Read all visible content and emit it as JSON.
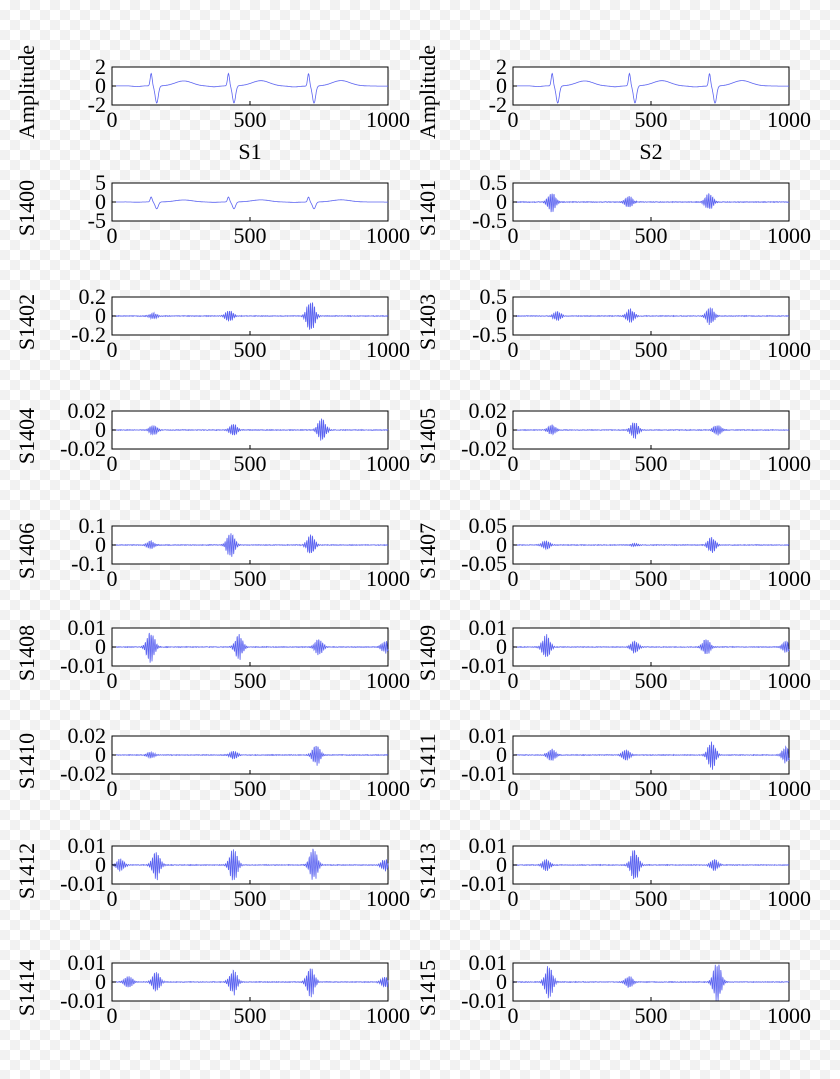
{
  "chart_data": [
    {
      "type": "line",
      "ylabel": "Amplitude",
      "subtitle": "S1",
      "xlim": [
        0,
        1000
      ],
      "ylim": [
        -2,
        2
      ],
      "xticks": [
        "0",
        "500",
        "1000"
      ],
      "yticks": [
        "2",
        "0",
        "-2"
      ],
      "color": "#5b63f0",
      "signal": {
        "kind": "ecg",
        "amp": 1
      }
    },
    {
      "type": "line",
      "ylabel": "Amplitude",
      "subtitle": "S2",
      "xlim": [
        0,
        1000
      ],
      "ylim": [
        -2,
        2
      ],
      "xticks": [
        "0",
        "500",
        "1000"
      ],
      "yticks": [
        "2",
        "0",
        "-2"
      ],
      "color": "#5b63f0",
      "signal": {
        "kind": "ecg",
        "amp": 1
      }
    },
    {
      "type": "line",
      "ylabel": "S1400",
      "xlim": [
        0,
        1000
      ],
      "ylim": [
        -5,
        5
      ],
      "xticks": [
        "0",
        "500",
        "1000"
      ],
      "yticks": [
        "5",
        "0",
        "-5"
      ],
      "color": "#5b63f0",
      "signal": {
        "kind": "ecg",
        "amp": 0.9
      }
    },
    {
      "type": "line",
      "ylabel": "S1401",
      "xlim": [
        0,
        1000
      ],
      "ylim": [
        -0.5,
        0.5
      ],
      "xticks": [
        "0",
        "500",
        "1000"
      ],
      "yticks": [
        "0.5",
        "0",
        "-0.5"
      ],
      "color": "#5b63f0",
      "signal": {
        "kind": "burst",
        "bursts": [
          [
            140,
            0.25
          ],
          [
            420,
            0.15
          ],
          [
            710,
            0.2
          ]
        ]
      }
    },
    {
      "type": "line",
      "ylabel": "S1402",
      "xlim": [
        0,
        1000
      ],
      "ylim": [
        -0.2,
        0.2
      ],
      "xticks": [
        "0",
        "500",
        "1000"
      ],
      "yticks": [
        "0.2",
        "0",
        "-0.2"
      ],
      "color": "#5b63f0",
      "signal": {
        "kind": "burst",
        "bursts": [
          [
            150,
            0.03
          ],
          [
            425,
            0.06
          ],
          [
            720,
            0.17
          ]
        ]
      }
    },
    {
      "type": "line",
      "ylabel": "S1403",
      "xlim": [
        0,
        1000
      ],
      "ylim": [
        -0.5,
        0.5
      ],
      "xticks": [
        "0",
        "500",
        "1000"
      ],
      "yticks": [
        "0.5",
        "0",
        "-0.5"
      ],
      "color": "#5b63f0",
      "signal": {
        "kind": "burst",
        "bursts": [
          [
            160,
            0.12
          ],
          [
            425,
            0.18
          ],
          [
            715,
            0.22
          ]
        ]
      }
    },
    {
      "type": "line",
      "ylabel": "S1404",
      "xlim": [
        0,
        1000
      ],
      "ylim": [
        -0.02,
        0.02
      ],
      "xticks": [
        "0",
        "500",
        "1000"
      ],
      "yticks": [
        "0.02",
        "0",
        "-0.02"
      ],
      "color": "#5b63f0",
      "signal": {
        "kind": "burst",
        "bursts": [
          [
            150,
            0.005
          ],
          [
            440,
            0.006
          ],
          [
            760,
            0.012
          ]
        ]
      }
    },
    {
      "type": "line",
      "ylabel": "S1405",
      "xlim": [
        0,
        1000
      ],
      "ylim": [
        -0.02,
        0.02
      ],
      "xticks": [
        "0",
        "500",
        "1000"
      ],
      "yticks": [
        "0.02",
        "0",
        "-0.02"
      ],
      "color": "#5b63f0",
      "signal": {
        "kind": "burst",
        "bursts": [
          [
            140,
            0.005
          ],
          [
            440,
            0.008
          ],
          [
            740,
            0.005
          ]
        ]
      }
    },
    {
      "type": "line",
      "ylabel": "S1406",
      "xlim": [
        0,
        1000
      ],
      "ylim": [
        -0.1,
        0.1
      ],
      "xticks": [
        "0",
        "500",
        "1000"
      ],
      "yticks": [
        "0.1",
        "0",
        "-0.1"
      ],
      "color": "#5b63f0",
      "signal": {
        "kind": "burst",
        "bursts": [
          [
            140,
            0.02
          ],
          [
            430,
            0.06
          ],
          [
            720,
            0.05
          ]
        ]
      }
    },
    {
      "type": "line",
      "ylabel": "S1407",
      "xlim": [
        0,
        1000
      ],
      "ylim": [
        -0.05,
        0.05
      ],
      "xticks": [
        "0",
        "500",
        "1000"
      ],
      "yticks": [
        "0.05",
        "0",
        "-0.05"
      ],
      "color": "#5b63f0",
      "signal": {
        "kind": "burst",
        "bursts": [
          [
            120,
            0.012
          ],
          [
            440,
            0.004
          ],
          [
            720,
            0.02
          ]
        ]
      }
    },
    {
      "type": "line",
      "ylabel": "S1408",
      "xlim": [
        0,
        1000
      ],
      "ylim": [
        -0.01,
        0.01
      ],
      "xticks": [
        "0",
        "500",
        "1000"
      ],
      "yticks": [
        "0.01",
        "0",
        "-0.01"
      ],
      "color": "#5b63f0",
      "signal": {
        "kind": "burst",
        "bursts": [
          [
            140,
            0.008
          ],
          [
            460,
            0.006
          ],
          [
            750,
            0.004
          ],
          [
            990,
            0.003
          ]
        ]
      }
    },
    {
      "type": "line",
      "ylabel": "S1409",
      "xlim": [
        0,
        1000
      ],
      "ylim": [
        -0.01,
        0.01
      ],
      "xticks": [
        "0",
        "500",
        "1000"
      ],
      "yticks": [
        "0.01",
        "0",
        "-0.01"
      ],
      "color": "#5b63f0",
      "signal": {
        "kind": "burst",
        "bursts": [
          [
            120,
            0.006
          ],
          [
            440,
            0.003
          ],
          [
            700,
            0.004
          ],
          [
            990,
            0.003
          ]
        ]
      }
    },
    {
      "type": "line",
      "ylabel": "S1410",
      "xlim": [
        0,
        1000
      ],
      "ylim": [
        -0.02,
        0.02
      ],
      "xticks": [
        "0",
        "500",
        "1000"
      ],
      "yticks": [
        "0.02",
        "0",
        "-0.02"
      ],
      "color": "#5b63f0",
      "signal": {
        "kind": "burst",
        "bursts": [
          [
            140,
            0.003
          ],
          [
            440,
            0.004
          ],
          [
            740,
            0.01
          ]
        ]
      }
    },
    {
      "type": "line",
      "ylabel": "S1411",
      "xlim": [
        0,
        1000
      ],
      "ylim": [
        -0.01,
        0.01
      ],
      "xticks": [
        "0",
        "500",
        "1000"
      ],
      "yticks": [
        "0.01",
        "0",
        "-0.01"
      ],
      "color": "#5b63f0",
      "signal": {
        "kind": "burst",
        "bursts": [
          [
            140,
            0.003
          ],
          [
            410,
            0.003
          ],
          [
            720,
            0.007
          ],
          [
            990,
            0.004
          ]
        ]
      }
    },
    {
      "type": "line",
      "ylabel": "S1412",
      "xlim": [
        0,
        1000
      ],
      "ylim": [
        -0.01,
        0.01
      ],
      "xticks": [
        "0",
        "500",
        "1000"
      ],
      "yticks": [
        "0.01",
        "0",
        "-0.01"
      ],
      "color": "#5b63f0",
      "signal": {
        "kind": "burst",
        "bursts": [
          [
            30,
            0.003
          ],
          [
            160,
            0.007
          ],
          [
            440,
            0.008
          ],
          [
            730,
            0.008
          ],
          [
            990,
            0.003
          ]
        ]
      }
    },
    {
      "type": "line",
      "ylabel": "S1413",
      "xlim": [
        0,
        1000
      ],
      "ylim": [
        -0.01,
        0.01
      ],
      "xticks": [
        "0",
        "500",
        "1000"
      ],
      "yticks": [
        "0.01",
        "0",
        "-0.01"
      ],
      "color": "#5b63f0",
      "signal": {
        "kind": "burst",
        "bursts": [
          [
            120,
            0.003
          ],
          [
            440,
            0.008
          ],
          [
            730,
            0.003
          ]
        ]
      }
    },
    {
      "type": "line",
      "ylabel": "S1414",
      "xlim": [
        0,
        1000
      ],
      "ylim": [
        -0.01,
        0.01
      ],
      "xticks": [
        "0",
        "500",
        "1000"
      ],
      "yticks": [
        "0.01",
        "0",
        "-0.01"
      ],
      "color": "#5b63f0",
      "signal": {
        "kind": "burst",
        "bursts": [
          [
            60,
            0.003
          ],
          [
            160,
            0.005
          ],
          [
            440,
            0.006
          ],
          [
            720,
            0.007
          ],
          [
            990,
            0.003
          ]
        ]
      }
    },
    {
      "type": "line",
      "ylabel": "S1415",
      "xlim": [
        0,
        1000
      ],
      "ylim": [
        -0.01,
        0.01
      ],
      "xticks": [
        "0",
        "500",
        "1000"
      ],
      "yticks": [
        "0.01",
        "0",
        "-0.01"
      ],
      "color": "#5b63f0",
      "signal": {
        "kind": "burst",
        "bursts": [
          [
            130,
            0.008
          ],
          [
            420,
            0.003
          ],
          [
            740,
            0.01
          ]
        ]
      }
    }
  ]
}
